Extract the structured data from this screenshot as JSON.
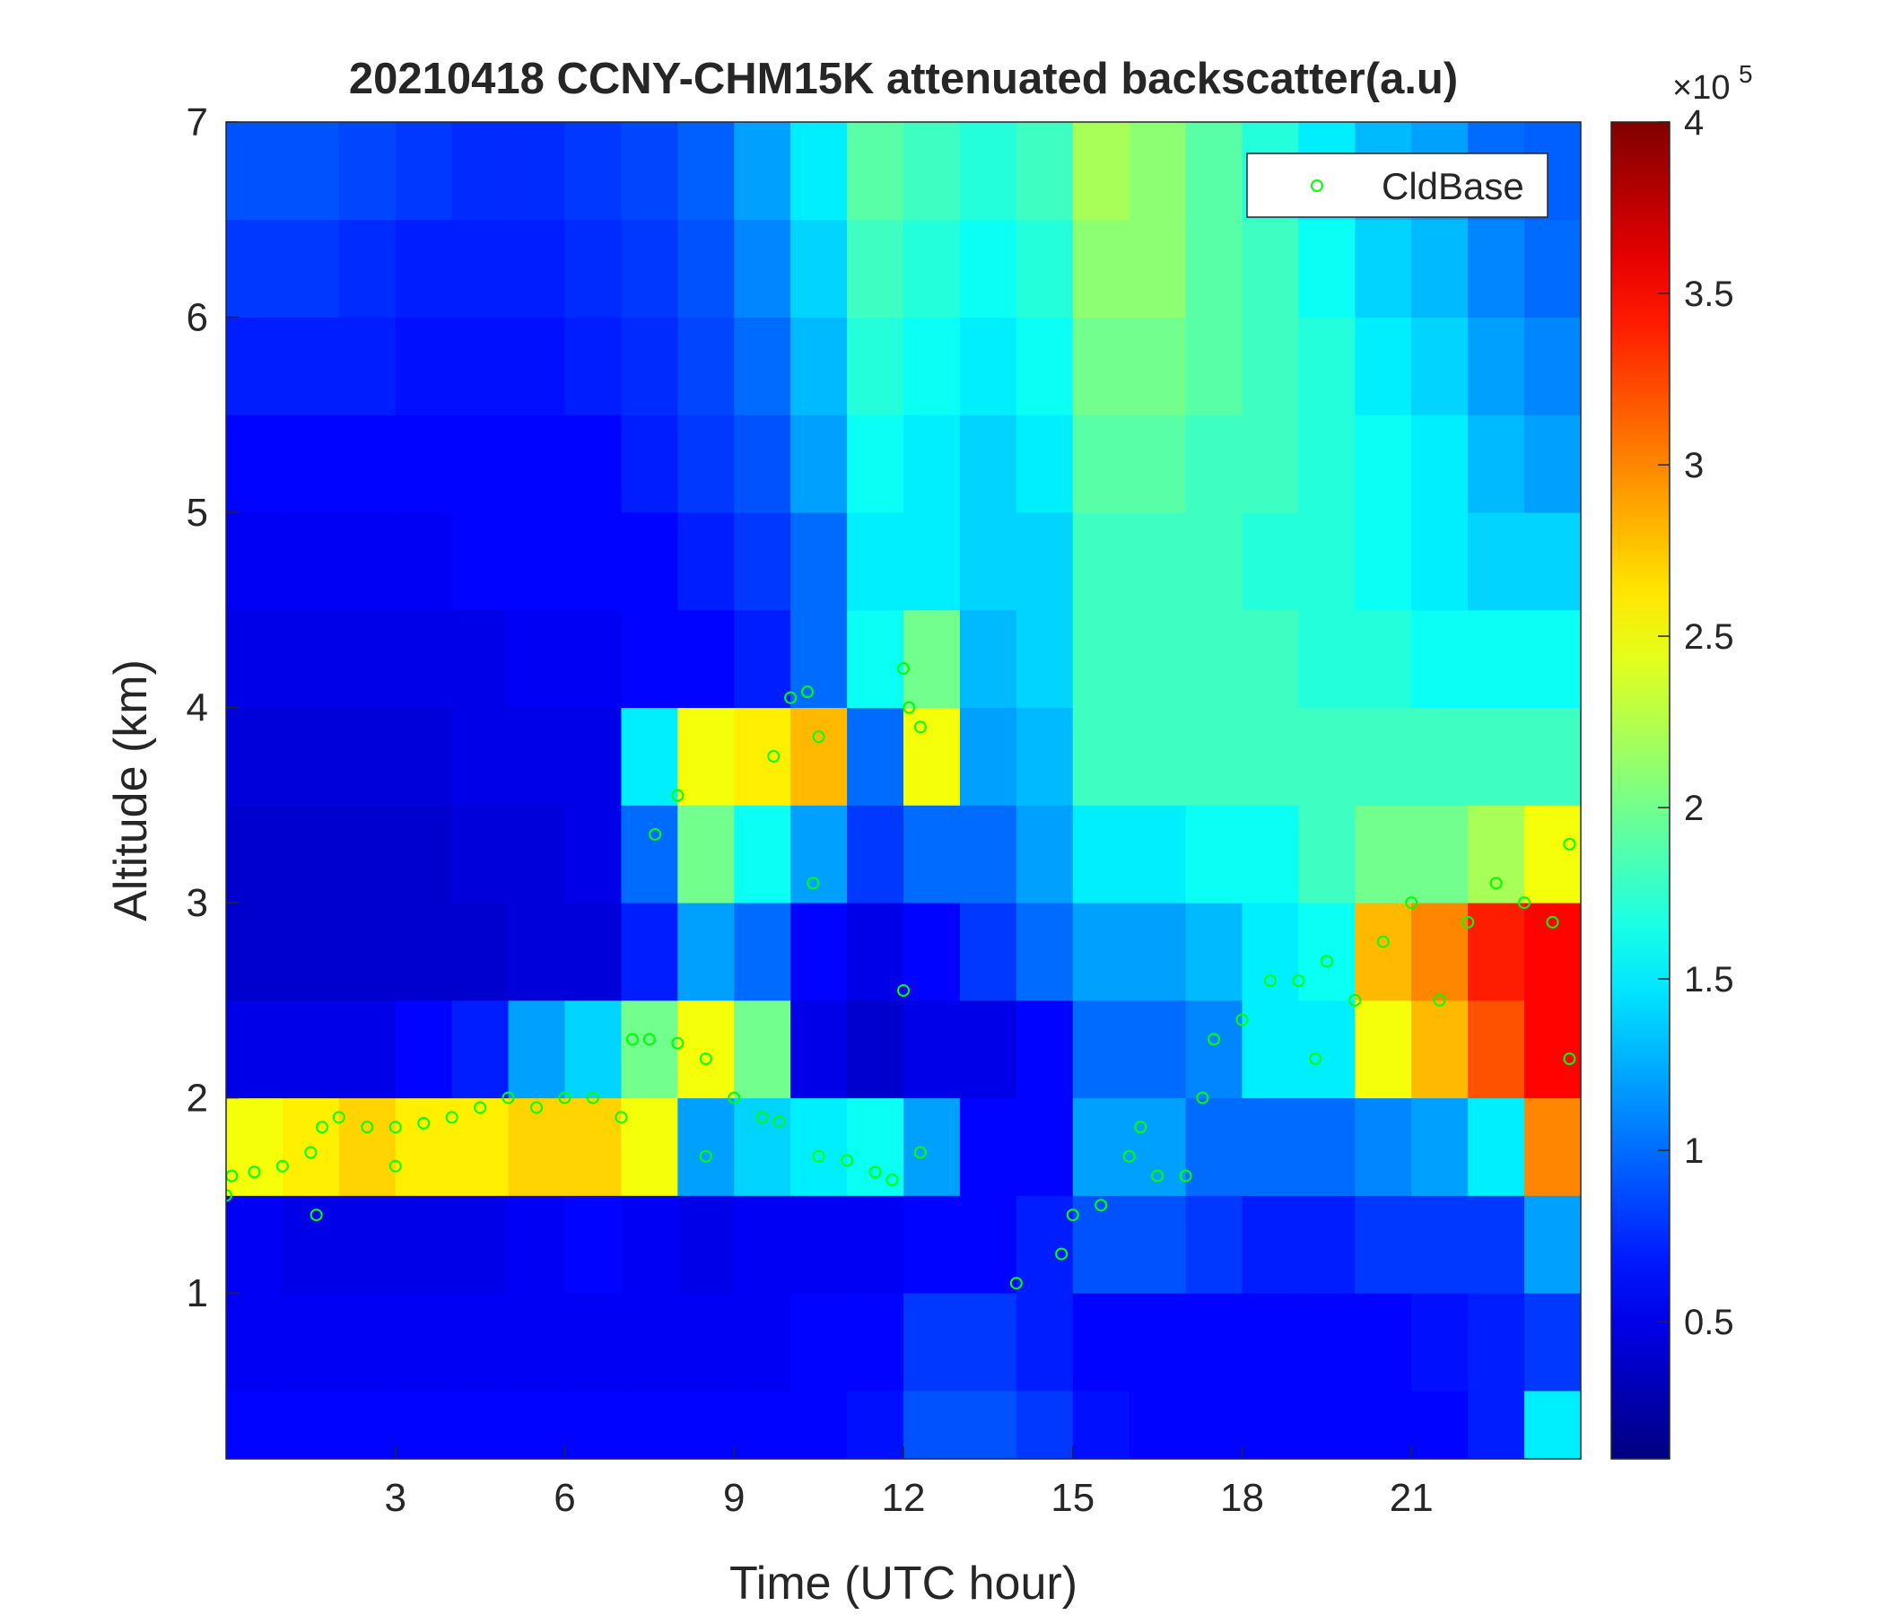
{
  "chart_data": {
    "type": "heatmap",
    "title": "20210418 CCNY-CHM15K attenuated backscatter(a.u)",
    "x_label": "Time (UTC hour)",
    "y_label": "Altitude (km)",
    "xlim": [
      0,
      24
    ],
    "ylim": [
      0.15,
      7
    ],
    "xticks": [
      3,
      6,
      9,
      12,
      15,
      18,
      21
    ],
    "yticks": [
      1,
      2,
      3,
      4,
      5,
      6,
      7
    ],
    "x_edges": [
      0,
      1,
      2,
      3,
      4,
      5,
      6,
      7,
      8,
      9,
      10,
      11,
      12,
      13,
      14,
      15,
      16,
      17,
      18,
      19,
      20,
      21,
      22,
      23,
      24
    ],
    "y_edges": [
      0.15,
      0.5,
      1,
      1.5,
      2,
      2.5,
      3,
      3.5,
      4,
      4.5,
      5,
      5.5,
      6,
      6.5,
      7
    ],
    "z": [
      [
        0.6,
        0.6,
        0.6,
        0.6,
        0.6,
        0.6,
        0.6,
        0.6,
        0.6,
        0.6,
        0.6,
        0.65,
        0.9,
        0.9,
        0.8,
        0.65,
        0.6,
        0.6,
        0.6,
        0.6,
        0.6,
        0.6,
        0.7,
        1.5
      ],
      [
        0.55,
        0.55,
        0.55,
        0.55,
        0.55,
        0.55,
        0.55,
        0.55,
        0.55,
        0.55,
        0.6,
        0.6,
        0.8,
        0.8,
        0.7,
        0.6,
        0.6,
        0.6,
        0.6,
        0.6,
        0.6,
        0.65,
        0.7,
        0.8
      ],
      [
        0.55,
        0.5,
        0.5,
        0.5,
        0.5,
        0.55,
        0.6,
        0.55,
        0.5,
        0.55,
        0.55,
        0.55,
        0.6,
        0.6,
        0.7,
        0.9,
        0.9,
        0.8,
        0.7,
        0.7,
        0.8,
        0.8,
        0.8,
        1.2
      ],
      [
        2.5,
        2.6,
        2.7,
        2.6,
        2.6,
        2.7,
        2.7,
        2.5,
        1.2,
        1.4,
        1.5,
        1.6,
        1.2,
        0.6,
        0.6,
        1.2,
        1.2,
        1.0,
        1.0,
        1.0,
        1.1,
        1.2,
        1.5,
        3.0
      ],
      [
        0.5,
        0.5,
        0.5,
        0.6,
        0.7,
        1.2,
        1.4,
        2.0,
        2.5,
        2.0,
        0.5,
        0.4,
        0.5,
        0.5,
        0.6,
        1.0,
        1.0,
        1.1,
        1.5,
        1.5,
        2.5,
        2.8,
        3.2,
        3.5
      ],
      [
        0.4,
        0.4,
        0.4,
        0.4,
        0.4,
        0.45,
        0.45,
        0.7,
        1.2,
        1.0,
        0.6,
        0.5,
        0.6,
        0.8,
        1.0,
        1.2,
        1.2,
        1.3,
        1.5,
        1.6,
        2.8,
        3.0,
        3.4,
        3.5
      ],
      [
        0.4,
        0.4,
        0.4,
        0.4,
        0.45,
        0.45,
        0.5,
        1.0,
        2.0,
        1.6,
        1.2,
        0.8,
        1.0,
        1.0,
        1.2,
        1.5,
        1.5,
        1.6,
        1.6,
        1.8,
        2.0,
        2.0,
        2.2,
        2.5
      ],
      [
        0.45,
        0.45,
        0.45,
        0.45,
        0.5,
        0.5,
        0.5,
        1.5,
        2.5,
        2.6,
        2.8,
        1.0,
        2.5,
        1.2,
        1.3,
        1.8,
        1.8,
        1.8,
        1.8,
        1.8,
        1.8,
        1.8,
        1.8,
        1.8
      ],
      [
        0.5,
        0.5,
        0.5,
        0.5,
        0.5,
        0.55,
        0.55,
        0.6,
        0.6,
        0.7,
        1.0,
        1.6,
        2.0,
        1.3,
        1.4,
        1.8,
        1.8,
        1.8,
        1.8,
        1.7,
        1.7,
        1.6,
        1.6,
        1.6
      ],
      [
        0.55,
        0.55,
        0.55,
        0.55,
        0.6,
        0.6,
        0.6,
        0.6,
        0.7,
        0.8,
        1.0,
        1.5,
        1.5,
        1.4,
        1.4,
        1.8,
        1.8,
        1.8,
        1.7,
        1.7,
        1.6,
        1.5,
        1.4,
        1.4
      ],
      [
        0.6,
        0.6,
        0.6,
        0.6,
        0.6,
        0.6,
        0.6,
        0.7,
        0.8,
        0.9,
        1.2,
        1.6,
        1.5,
        1.4,
        1.5,
        1.9,
        1.9,
        1.8,
        1.8,
        1.7,
        1.6,
        1.5,
        1.3,
        1.2
      ],
      [
        0.7,
        0.7,
        0.7,
        0.65,
        0.65,
        0.65,
        0.7,
        0.75,
        0.85,
        1.0,
        1.3,
        1.7,
        1.6,
        1.5,
        1.6,
        2.0,
        2.0,
        1.9,
        1.8,
        1.7,
        1.5,
        1.4,
        1.2,
        1.1
      ],
      [
        0.8,
        0.8,
        0.75,
        0.7,
        0.7,
        0.7,
        0.75,
        0.8,
        0.9,
        1.1,
        1.4,
        1.8,
        1.7,
        1.6,
        1.7,
        2.1,
        2.1,
        1.9,
        1.8,
        1.6,
        1.4,
        1.3,
        1.1,
        1.0
      ],
      [
        0.9,
        0.9,
        0.85,
        0.8,
        0.75,
        0.75,
        0.8,
        0.85,
        0.95,
        1.2,
        1.5,
        1.9,
        1.8,
        1.7,
        1.8,
        2.2,
        2.1,
        1.9,
        1.7,
        1.5,
        1.3,
        1.2,
        1.0,
        0.95
      ]
    ],
    "clim": [
      0.1,
      4
    ],
    "cticks": [
      0.5,
      1,
      1.5,
      2,
      2.5,
      3,
      3.5,
      4
    ],
    "colorbar_multiplier": "×10",
    "colorbar_exponent": 5,
    "colormap": "jet",
    "overlay": {
      "type": "scatter",
      "name": "CldBase",
      "color": "#00ff00",
      "legend_position": "upper right",
      "x": [
        0,
        0.1,
        0.5,
        1,
        1.5,
        1.6,
        1.7,
        2,
        2.5,
        3,
        3,
        3.5,
        4,
        4.5,
        5,
        5.5,
        6,
        6.5,
        7,
        7.2,
        7.5,
        7.6,
        8,
        8,
        8.5,
        8.5,
        9,
        9.5,
        9.7,
        9.8,
        10,
        10.3,
        10.4,
        10.5,
        10.5,
        11,
        11.5,
        11.8,
        12,
        12,
        12.1,
        12.3,
        12.3,
        14,
        14.8,
        15,
        15.5,
        16,
        16.2,
        16.5,
        17,
        17.3,
        17.5,
        18,
        18.5,
        19,
        19.3,
        19.5,
        20,
        20.5,
        21,
        21.5,
        22,
        22.5,
        23,
        23.5,
        23.8,
        23.8
      ],
      "y": [
        1.5,
        1.6,
        1.62,
        1.65,
        1.72,
        1.4,
        1.85,
        1.9,
        1.85,
        1.85,
        1.65,
        1.87,
        1.9,
        1.95,
        2.0,
        1.95,
        2.0,
        2.0,
        1.9,
        2.3,
        2.3,
        3.35,
        2.28,
        3.55,
        2.2,
        1.7,
        2.0,
        1.9,
        3.75,
        1.88,
        4.05,
        4.08,
        3.1,
        3.85,
        1.7,
        1.68,
        1.62,
        1.58,
        4.2,
        2.55,
        4.0,
        3.9,
        1.72,
        1.05,
        1.2,
        1.4,
        1.45,
        1.7,
        1.85,
        1.6,
        1.6,
        2.0,
        2.3,
        2.4,
        2.6,
        2.6,
        2.2,
        2.7,
        2.5,
        2.8,
        3.0,
        2.5,
        2.9,
        3.1,
        3.0,
        2.9,
        3.3,
        2.2
      ]
    }
  }
}
